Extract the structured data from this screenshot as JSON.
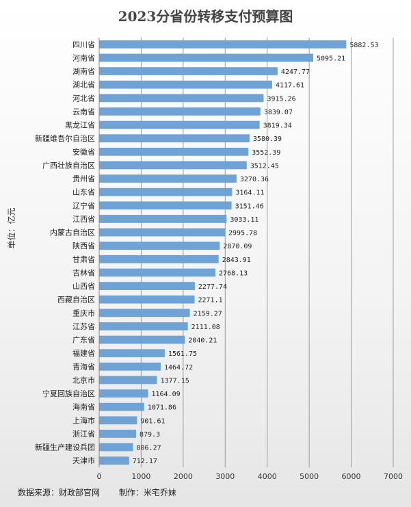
{
  "chart_data": {
    "type": "bar",
    "orientation": "horizontal",
    "title": "2023分省份转移支付预算图",
    "ylabel": "单位：亿元",
    "xlabel": "",
    "xlim": [
      0,
      7000
    ],
    "xticks": [
      0,
      1000,
      2000,
      3000,
      4000,
      5000,
      6000,
      7000
    ],
    "grid": "vertical",
    "bar_color": "#6fa3d6",
    "categories": [
      "四川省",
      "河南省",
      "湖南省",
      "湖北省",
      "河北省",
      "云南省",
      "黑龙江省",
      "新疆维吾尔自治区",
      "安徽省",
      "广西壮族自治区",
      "贵州省",
      "山东省",
      "辽宁省",
      "江西省",
      "内蒙古自治区",
      "陕西省",
      "甘肃省",
      "吉林省",
      "山西省",
      "西藏自治区",
      "重庆市",
      "江苏省",
      "广东省",
      "福建省",
      "青海省",
      "北京市",
      "宁夏回族自治区",
      "海南省",
      "上海市",
      "浙江省",
      "新疆生产建设兵团",
      "天津市"
    ],
    "values": [
      5882.53,
      5095.21,
      4247.77,
      4117.61,
      3915.26,
      3839.07,
      3819.34,
      3580.39,
      3552.39,
      3512.45,
      3270.36,
      3164.11,
      3151.46,
      3033.11,
      2995.78,
      2870.09,
      2843.91,
      2768.13,
      2277.74,
      2271.1,
      2159.27,
      2111.08,
      2040.21,
      1561.75,
      1464.72,
      1377.15,
      1164.09,
      1071.86,
      901.61,
      879.3,
      806.27,
      712.17
    ],
    "value_labels": [
      "5882.53",
      "5095.21",
      "4247.77",
      "4117.61",
      "3915.26",
      "3839.07",
      "3819.34",
      "3580.39",
      "3552.39",
      "3512.45",
      "3270.36",
      "3164.11",
      "3151.46",
      "3033.11",
      "2995.78",
      "2870.09",
      "2843.91",
      "2768.13",
      "2277.74",
      "2271.1",
      "2159.27",
      "2111.08",
      "2040.21",
      "1561.75",
      "1464.72",
      "1377.15",
      "1164.09",
      "1071.86",
      "901.61",
      "879.3",
      "806.27",
      "712.17"
    ]
  },
  "footer": {
    "source": "数据来源：财政部官网",
    "author": "制作：米宅乔妹"
  }
}
